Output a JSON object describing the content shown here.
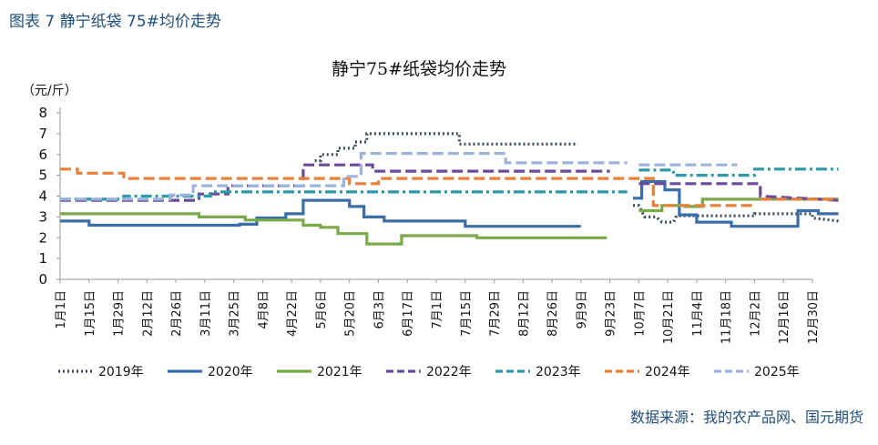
{
  "figure_label": "图表 7  静宁纸袋 75#均价走势",
  "source_note": "数据来源：我的农产品网、国元期货",
  "chart_data": {
    "type": "line",
    "title": "静宁75#纸袋均价走势",
    "ylabel": "（元/斤）",
    "xlabel": "",
    "ylim": [
      0,
      8
    ],
    "yticks": [
      0,
      1,
      2,
      3,
      4,
      5,
      6,
      7,
      8
    ],
    "categories": [
      "1月1日",
      "1月15日",
      "1月29日",
      "2月12日",
      "2月26日",
      "3月11日",
      "3月25日",
      "4月8日",
      "4月22日",
      "5月6日",
      "5月20日",
      "6月3日",
      "6月17日",
      "7月1日",
      "7月15日",
      "7月29日",
      "8月12日",
      "8月26日",
      "9月9日",
      "9月23日",
      "10月7日",
      "10月21日",
      "11月4日",
      "11月18日",
      "12月2日",
      "12月16日",
      "12月30日"
    ],
    "legend_position": "bottom",
    "series": [
      {
        "name": "2019年",
        "color": "#3a4a5c",
        "style": "dotted",
        "points": [
          [
            8.8,
            5.7
          ],
          [
            9.0,
            5.7
          ],
          [
            9.0,
            6.0
          ],
          [
            9.6,
            6.0
          ],
          [
            9.6,
            6.3
          ],
          [
            10.2,
            6.3
          ],
          [
            10.2,
            6.6
          ],
          [
            10.6,
            6.6
          ],
          [
            10.6,
            7.0
          ],
          [
            13.8,
            7.0
          ],
          [
            13.8,
            6.5
          ],
          [
            17.9,
            6.5
          ]
        ],
        "points2": [
          [
            19.8,
            3.55
          ],
          [
            20.0,
            3.55
          ],
          [
            20.2,
            3.0
          ],
          [
            20.6,
            3.0
          ],
          [
            20.8,
            2.75
          ],
          [
            21.2,
            2.75
          ],
          [
            21.3,
            3.05
          ],
          [
            24.0,
            3.05
          ],
          [
            24.0,
            3.15
          ],
          [
            26.0,
            3.15
          ],
          [
            26.0,
            2.95
          ],
          [
            26.9,
            2.8
          ]
        ]
      },
      {
        "name": "2020年",
        "color": "#3b6ea8",
        "style": "solid",
        "points": [
          [
            0,
            2.8
          ],
          [
            1.0,
            2.8
          ],
          [
            1.0,
            2.6
          ],
          [
            6.2,
            2.6
          ],
          [
            6.2,
            2.65
          ],
          [
            6.8,
            2.65
          ],
          [
            6.8,
            2.95
          ],
          [
            7.8,
            2.95
          ],
          [
            7.8,
            3.15
          ],
          [
            8.4,
            3.15
          ],
          [
            8.4,
            3.8
          ],
          [
            10.0,
            3.8
          ],
          [
            10.0,
            3.5
          ],
          [
            10.5,
            3.5
          ],
          [
            10.5,
            3.0
          ],
          [
            11.2,
            3.0
          ],
          [
            11.2,
            2.8
          ],
          [
            14.0,
            2.8
          ],
          [
            14.0,
            2.55
          ],
          [
            18.0,
            2.55
          ]
        ],
        "points2": [
          [
            19.8,
            3.9
          ],
          [
            20.1,
            3.9
          ],
          [
            20.1,
            4.7
          ],
          [
            20.9,
            4.7
          ],
          [
            20.9,
            4.3
          ],
          [
            21.4,
            4.3
          ],
          [
            21.4,
            3.1
          ],
          [
            22.0,
            3.1
          ],
          [
            22.0,
            2.75
          ],
          [
            23.2,
            2.75
          ],
          [
            23.2,
            2.55
          ],
          [
            25.5,
            2.55
          ],
          [
            25.5,
            3.3
          ],
          [
            26.2,
            3.3
          ],
          [
            26.2,
            3.15
          ],
          [
            26.9,
            3.15
          ]
        ]
      },
      {
        "name": "2021年",
        "color": "#7aaa48",
        "style": "solid",
        "points": [
          [
            0,
            3.15
          ],
          [
            4.8,
            3.15
          ],
          [
            4.8,
            3.0
          ],
          [
            6.4,
            3.0
          ],
          [
            6.4,
            2.85
          ],
          [
            8.4,
            2.85
          ],
          [
            8.4,
            2.6
          ],
          [
            9.0,
            2.6
          ],
          [
            9.0,
            2.5
          ],
          [
            9.6,
            2.5
          ],
          [
            9.6,
            2.2
          ],
          [
            10.6,
            2.2
          ],
          [
            10.6,
            1.7
          ],
          [
            11.8,
            1.7
          ],
          [
            11.8,
            2.1
          ],
          [
            14.4,
            2.1
          ],
          [
            14.4,
            2.0
          ],
          [
            18.9,
            2.0
          ]
        ],
        "points2": [
          [
            20.0,
            3.3
          ],
          [
            20.8,
            3.3
          ],
          [
            20.8,
            3.55
          ],
          [
            21.6,
            3.55
          ],
          [
            21.6,
            3.5
          ],
          [
            22.2,
            3.5
          ],
          [
            22.2,
            3.85
          ],
          [
            26.9,
            3.85
          ]
        ]
      },
      {
        "name": "2022年",
        "color": "#6b4a9a",
        "style": "dashed",
        "points": [
          [
            0,
            3.8
          ],
          [
            4.8,
            3.8
          ],
          [
            4.8,
            4.1
          ],
          [
            5.8,
            4.1
          ],
          [
            5.8,
            4.5
          ],
          [
            8.4,
            4.5
          ],
          [
            8.4,
            5.5
          ],
          [
            10.8,
            5.5
          ],
          [
            10.8,
            5.2
          ],
          [
            19.0,
            5.2
          ]
        ],
        "points2": [
          [
            20.0,
            4.6
          ],
          [
            24.2,
            4.6
          ],
          [
            24.2,
            4.0
          ],
          [
            26.9,
            3.8
          ]
        ]
      },
      {
        "name": "2023年",
        "color": "#2b99a8",
        "style": "dashdot",
        "points": [
          [
            0,
            3.85
          ],
          [
            2.2,
            3.85
          ],
          [
            2.2,
            4.0
          ],
          [
            5.2,
            4.0
          ],
          [
            5.2,
            4.2
          ],
          [
            19.6,
            4.2
          ]
        ],
        "points2": [
          [
            20.0,
            5.25
          ],
          [
            21.2,
            5.25
          ],
          [
            21.2,
            5.0
          ],
          [
            24.0,
            5.0
          ],
          [
            24.0,
            5.3
          ],
          [
            26.9,
            5.3
          ]
        ]
      },
      {
        "name": "2024年",
        "color": "#e8803a",
        "style": "dashed",
        "points": [
          [
            0,
            5.3
          ],
          [
            0.6,
            5.3
          ],
          [
            0.6,
            5.1
          ],
          [
            2.2,
            5.1
          ],
          [
            2.2,
            4.85
          ],
          [
            10.0,
            4.85
          ],
          [
            10.0,
            4.6
          ],
          [
            11.0,
            4.6
          ],
          [
            11.0,
            4.85
          ],
          [
            20.5,
            4.85
          ],
          [
            20.5,
            3.55
          ],
          [
            24.0,
            3.55
          ]
        ],
        "points2": [
          [
            24.2,
            3.85
          ],
          [
            26.9,
            3.85
          ]
        ]
      },
      {
        "name": "2025年",
        "color": "#9cb4dc",
        "style": "dashed",
        "points": [
          [
            0,
            3.85
          ],
          [
            3.8,
            3.85
          ],
          [
            3.8,
            4.05
          ],
          [
            4.6,
            4.05
          ],
          [
            4.6,
            4.5
          ],
          [
            9.8,
            4.5
          ],
          [
            9.8,
            4.95
          ],
          [
            10.4,
            4.95
          ],
          [
            10.4,
            6.05
          ],
          [
            15.4,
            6.05
          ],
          [
            15.4,
            5.6
          ],
          [
            19.6,
            5.6
          ]
        ],
        "points2": [
          [
            20.0,
            5.5
          ],
          [
            23.4,
            5.5
          ]
        ]
      }
    ]
  }
}
